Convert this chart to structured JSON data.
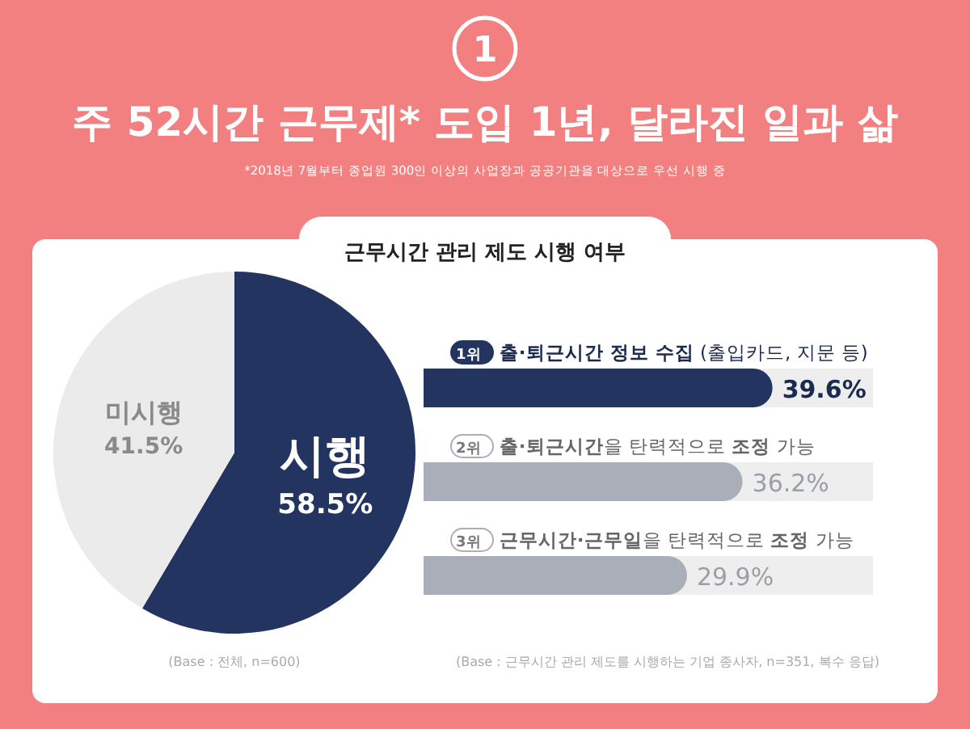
{
  "chart_data": [
    {
      "type": "other",
      "title": "주 52시간 근무제* 도입 1년, 달라진 일과 삶",
      "subtitle": "*2018년 7월부터 종업원 300인 이상의 사업장과 공공기관을 대상으로 우선 시행 중",
      "annotations": [
        "1"
      ]
    },
    {
      "type": "pie",
      "title": "근무시간 관리 제도 시행 여부",
      "categories": [
        "시행",
        "미시행"
      ],
      "values": [
        58.5,
        41.5
      ],
      "colors": [
        "#22345f",
        "#ebebeb"
      ],
      "value_labels": [
        "58.5%",
        "41.5%"
      ],
      "annotations": [
        "(Base : 전체, n=600)"
      ]
    },
    {
      "type": "bar",
      "orientation": "horizontal",
      "categories": [
        "1위 **출·퇴근시간 정보 수집** (출입카드, 지문 등)",
        "2위 **출·퇴근시간**을 탄력적으로 **조정** 가능",
        "3위 **근무시간·근무일**을 탄력적으로 **조정** 가능"
      ],
      "values": [
        39.6,
        36.2,
        29.9
      ],
      "colors": [
        "#22345f",
        "#a9aeb8",
        "#a9aeb8"
      ],
      "value_labels": [
        "39.6%",
        "36.2%",
        "29.9%"
      ],
      "annotations": [
        "(Base : 근무시간 관리 제도를 시행하는 기업 종사자, n=351, 복수 응답)"
      ]
    }
  ]
}
